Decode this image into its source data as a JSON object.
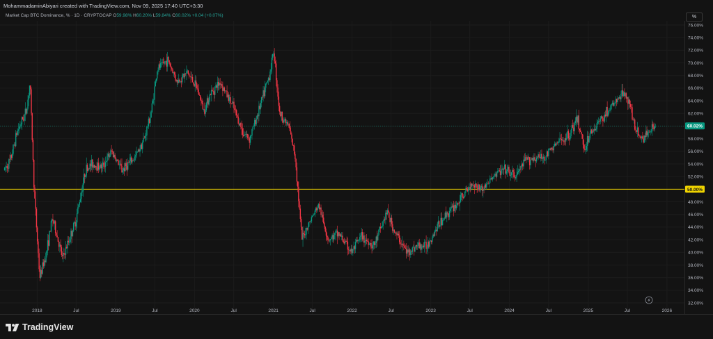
{
  "header": {
    "attribution": "MohammadaminAbiyari created with TradingView.com, Nov 09, 2025 17:40 UTC+3:30"
  },
  "legend": {
    "title": "Market Cap BTC Dominance, % · 1D · CRYPTOCAP",
    "o_label": "O",
    "o_value": "59.98%",
    "h_label": "H",
    "h_value": "60.20%",
    "l_label": "L",
    "l_value": "59.84%",
    "c_label": "C",
    "c_value": "60.02%",
    "change": "+0.04 (+0.07%)"
  },
  "scale_toggle": "%",
  "brand": {
    "name": "TradingView",
    "logo_icon": "tradingview-logo-icon"
  },
  "badge_colors": {
    "last": "#089981",
    "level": "#f0d400"
  },
  "chart_data": {
    "type": "candlestick",
    "title": "Market Cap BTC Dominance, % · 1D · CRYPTOCAP",
    "x_axis_labels": [
      "2018",
      "Jul",
      "2019",
      "Jul",
      "2020",
      "Jul",
      "2021",
      "Jul",
      "2022",
      "Jul",
      "2023",
      "Jul",
      "2024",
      "Jul",
      "2025",
      "Jul",
      "2026"
    ],
    "y_axis_labels": [
      "32.00%",
      "34.00%",
      "36.00%",
      "38.00%",
      "40.00%",
      "42.00%",
      "44.00%",
      "46.00%",
      "48.00%",
      "50.00%",
      "52.00%",
      "54.00%",
      "56.00%",
      "58.00%",
      "60.00%",
      "62.00%",
      "64.00%",
      "66.00%",
      "68.00%",
      "70.00%",
      "72.00%",
      "74.00%",
      "76.00%"
    ],
    "ylim": [
      32,
      76
    ],
    "xlim": [
      "2017-08-01",
      "2026-03-20"
    ],
    "current_price": 60.02,
    "current_price_label": "60.02%",
    "horizontal_line": 50.0,
    "horizontal_line_label": "50.00%",
    "up_color": "#089981",
    "down_color": "#f23645",
    "series_path": [
      [
        "2017-08-01",
        53.0
      ],
      [
        "2017-09-01",
        54.5
      ],
      [
        "2017-10-01",
        59.0
      ],
      [
        "2017-11-15",
        62.5
      ],
      [
        "2017-12-01",
        67.0
      ],
      [
        "2017-12-20",
        50.0
      ],
      [
        "2018-01-15",
        36.0
      ],
      [
        "2018-02-15",
        40.0
      ],
      [
        "2018-03-15",
        45.5
      ],
      [
        "2018-05-01",
        39.0
      ],
      [
        "2018-07-01",
        45.0
      ],
      [
        "2018-08-15",
        53.0
      ],
      [
        "2018-09-15",
        54.0
      ],
      [
        "2018-11-01",
        53.5
      ],
      [
        "2018-12-15",
        56.0
      ],
      [
        "2019-02-01",
        53.0
      ],
      [
        "2019-04-01",
        55.0
      ],
      [
        "2019-05-15",
        58.0
      ],
      [
        "2019-06-15",
        62.0
      ],
      [
        "2019-07-15",
        69.0
      ],
      [
        "2019-09-01",
        70.5
      ],
      [
        "2019-10-15",
        67.0
      ],
      [
        "2019-12-01",
        68.5
      ],
      [
        "2020-01-15",
        66.0
      ],
      [
        "2020-02-15",
        62.5
      ],
      [
        "2020-03-15",
        65.0
      ],
      [
        "2020-05-01",
        67.0
      ],
      [
        "2020-07-01",
        63.0
      ],
      [
        "2020-08-15",
        59.0
      ],
      [
        "2020-09-15",
        58.0
      ],
      [
        "2020-11-01",
        63.0
      ],
      [
        "2020-12-15",
        68.0
      ],
      [
        "2021-01-05",
        72.0
      ],
      [
        "2021-02-01",
        62.0
      ],
      [
        "2021-03-15",
        60.0
      ],
      [
        "2021-04-15",
        55.0
      ],
      [
        "2021-05-15",
        42.0
      ],
      [
        "2021-06-15",
        44.5
      ],
      [
        "2021-08-01",
        47.5
      ],
      [
        "2021-09-15",
        42.0
      ],
      [
        "2021-11-01",
        43.0
      ],
      [
        "2022-01-01",
        40.0
      ],
      [
        "2022-02-15",
        42.5
      ],
      [
        "2022-04-15",
        41.0
      ],
      [
        "2022-06-15",
        46.5
      ],
      [
        "2022-07-15",
        43.5
      ],
      [
        "2022-09-15",
        40.0
      ],
      [
        "2022-11-01",
        41.0
      ],
      [
        "2022-12-15",
        41.0
      ],
      [
        "2023-02-01",
        44.0
      ],
      [
        "2023-03-15",
        46.0
      ],
      [
        "2023-05-01",
        47.5
      ],
      [
        "2023-06-15",
        49.5
      ],
      [
        "2023-07-15",
        51.0
      ],
      [
        "2023-09-01",
        50.0
      ],
      [
        "2023-11-01",
        52.5
      ],
      [
        "2023-12-15",
        53.0
      ],
      [
        "2024-02-01",
        52.0
      ],
      [
        "2024-03-15",
        54.5
      ],
      [
        "2024-05-01",
        55.0
      ],
      [
        "2024-06-15",
        55.0
      ],
      [
        "2024-08-01",
        57.0
      ],
      [
        "2024-10-01",
        58.5
      ],
      [
        "2024-11-15",
        61.0
      ],
      [
        "2024-12-15",
        56.5
      ],
      [
        "2025-01-15",
        59.0
      ],
      [
        "2025-03-01",
        61.0
      ],
      [
        "2025-05-01",
        63.5
      ],
      [
        "2025-06-25",
        65.5
      ],
      [
        "2025-07-15",
        63.0
      ],
      [
        "2025-08-15",
        59.0
      ],
      [
        "2025-09-15",
        58.0
      ],
      [
        "2025-10-15",
        59.5
      ],
      [
        "2025-11-09",
        60.02
      ]
    ]
  }
}
